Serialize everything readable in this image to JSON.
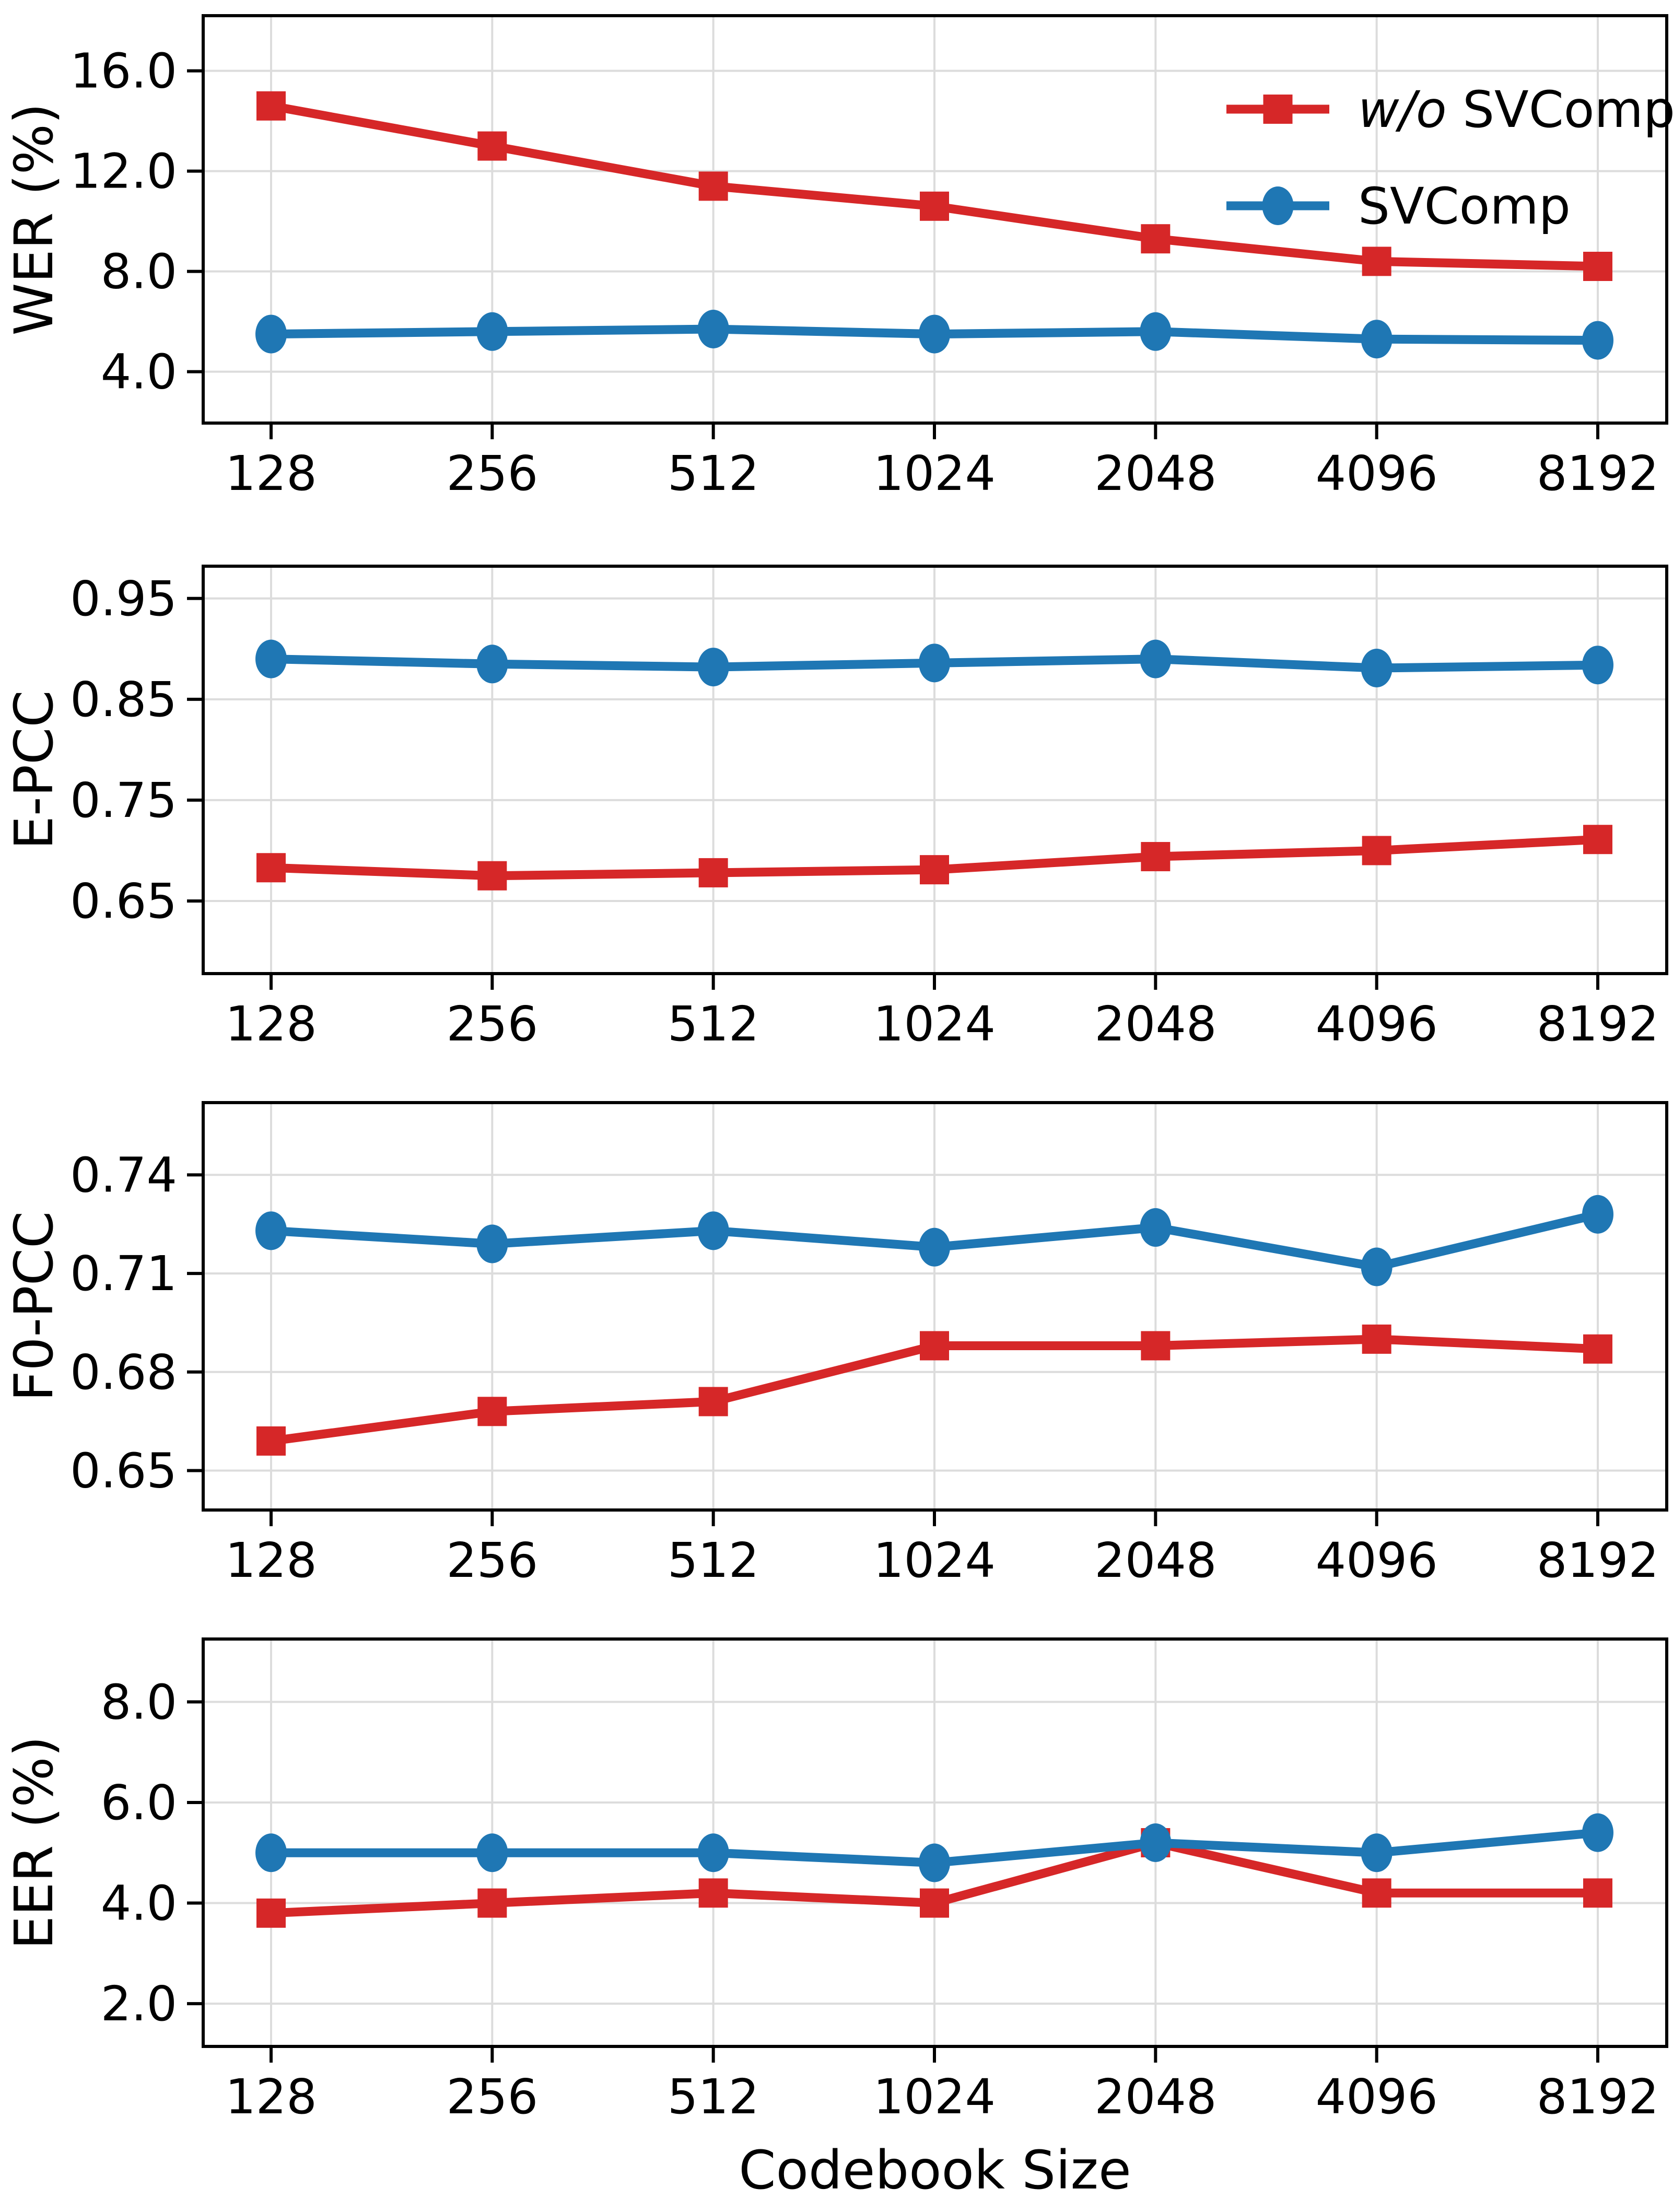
{
  "figure": {
    "xlabel": "Codebook Size",
    "background": "#ffffff",
    "grid_color": "#dcdcdc",
    "spine_color": "#000000",
    "text_color": "#000000",
    "categories": [
      "128",
      "256",
      "512",
      "1024",
      "2048",
      "4096",
      "8192"
    ],
    "legend": {
      "position": "upper-right-first-panel",
      "entries": [
        {
          "italic_prefix": "w/o",
          "label": "SVComp",
          "series_key": "wo_svcomp"
        },
        {
          "italic_prefix": "",
          "label": "SVComp",
          "series_key": "svcomp"
        }
      ]
    }
  },
  "series_style": {
    "wo_svcomp": {
      "color": "#d62728",
      "marker": "square"
    },
    "svcomp": {
      "color": "#1f77b4",
      "marker": "circle"
    }
  },
  "chart_data": [
    {
      "type": "line",
      "ylabel": "WER (%)",
      "x_categories": [
        "128",
        "256",
        "512",
        "1024",
        "2048",
        "4096",
        "8192"
      ],
      "ylim": [
        1.95,
        18.2
      ],
      "grid": true,
      "legend": true,
      "yticks": [
        {
          "value": 4.0,
          "label": "4.0"
        },
        {
          "value": 8.0,
          "label": "8.0"
        },
        {
          "value": 12.0,
          "label": "12.0"
        },
        {
          "value": 16.0,
          "label": "16.0"
        }
      ],
      "series": [
        {
          "name": "w/o SVComp",
          "key": "wo_svcomp",
          "values": [
            14.6,
            13.0,
            11.4,
            10.6,
            9.3,
            8.4,
            8.2
          ]
        },
        {
          "name": "SVComp",
          "key": "svcomp",
          "values": [
            5.5,
            5.6,
            5.7,
            5.5,
            5.6,
            5.3,
            5.25
          ]
        }
      ]
    },
    {
      "type": "line",
      "ylabel": "E-PCC",
      "x_categories": [
        "128",
        "256",
        "512",
        "1024",
        "2048",
        "4096",
        "8192"
      ],
      "ylim": [
        0.578,
        0.982
      ],
      "grid": true,
      "legend": false,
      "yticks": [
        {
          "value": 0.65,
          "label": "0.65"
        },
        {
          "value": 0.75,
          "label": "0.75"
        },
        {
          "value": 0.85,
          "label": "0.85"
        },
        {
          "value": 0.95,
          "label": "0.95"
        }
      ],
      "series": [
        {
          "name": "w/o SVComp",
          "key": "wo_svcomp",
          "values": [
            0.683,
            0.675,
            0.678,
            0.681,
            0.694,
            0.7,
            0.711
          ]
        },
        {
          "name": "SVComp",
          "key": "svcomp",
          "values": [
            0.89,
            0.885,
            0.882,
            0.886,
            0.89,
            0.881,
            0.884
          ]
        }
      ]
    },
    {
      "type": "line",
      "ylabel": "F0-PCC",
      "x_categories": [
        "128",
        "256",
        "512",
        "1024",
        "2048",
        "4096",
        "8192"
      ],
      "ylim": [
        0.638,
        0.762
      ],
      "grid": true,
      "legend": false,
      "yticks": [
        {
          "value": 0.65,
          "label": "0.65"
        },
        {
          "value": 0.68,
          "label": "0.68"
        },
        {
          "value": 0.71,
          "label": "0.71"
        },
        {
          "value": 0.74,
          "label": "0.74"
        }
      ],
      "series": [
        {
          "name": "w/o SVComp",
          "key": "wo_svcomp",
          "values": [
            0.659,
            0.668,
            0.671,
            0.688,
            0.688,
            0.69,
            0.687
          ]
        },
        {
          "name": "SVComp",
          "key": "svcomp",
          "values": [
            0.723,
            0.719,
            0.723,
            0.718,
            0.724,
            0.712,
            0.728
          ]
        }
      ]
    },
    {
      "type": "line",
      "ylabel": "EER (%)",
      "x_categories": [
        "128",
        "256",
        "512",
        "1024",
        "2048",
        "4096",
        "8192"
      ],
      "ylim": [
        1.15,
        9.25
      ],
      "grid": true,
      "legend": false,
      "yticks": [
        {
          "value": 2.0,
          "label": "2.0"
        },
        {
          "value": 4.0,
          "label": "4.0"
        },
        {
          "value": 6.0,
          "label": "6.0"
        },
        {
          "value": 8.0,
          "label": "8.0"
        }
      ],
      "series": [
        {
          "name": "w/o SVComp",
          "key": "wo_svcomp",
          "values": [
            3.8,
            4.0,
            4.2,
            4.0,
            5.2,
            4.2,
            4.2
          ]
        },
        {
          "name": "SVComp",
          "key": "svcomp",
          "values": [
            5.0,
            5.0,
            5.0,
            4.8,
            5.2,
            5.0,
            5.4
          ]
        }
      ]
    }
  ]
}
